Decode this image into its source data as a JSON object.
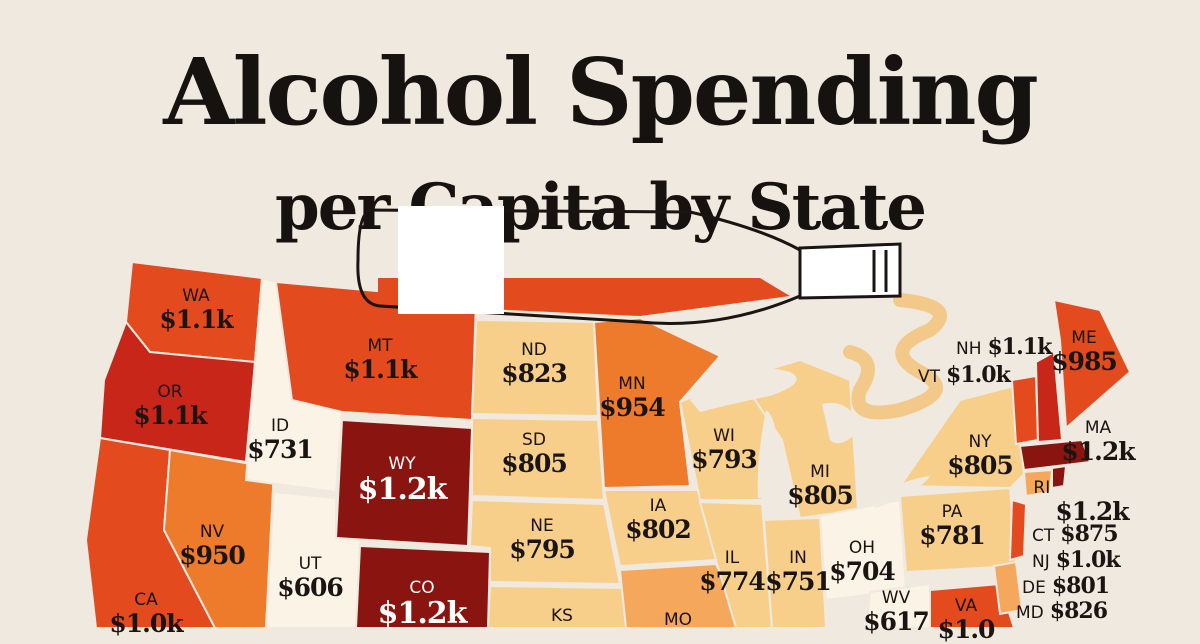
{
  "title": {
    "line1": "Alcohol Spending",
    "line2": "per Capita by State"
  },
  "colors": {
    "background": "#efe9df",
    "lowest": "#fbf3e6",
    "low": "#f7cf8a",
    "mid_low": "#f5a85c",
    "mid": "#ee7a2c",
    "high": "#e34a1d",
    "higher": "#c9261a",
    "highest": "#8a1410",
    "lake_river": "#f3c989"
  },
  "states": [
    {
      "id": "WA",
      "abbr": "WA",
      "value": "$1.1k"
    },
    {
      "id": "OR",
      "abbr": "OR",
      "value": "$1.1k"
    },
    {
      "id": "ID",
      "abbr": "ID",
      "value": "$731"
    },
    {
      "id": "MT",
      "abbr": "MT",
      "value": "$1.1k"
    },
    {
      "id": "WY",
      "abbr": "WY",
      "value": "$1.2k"
    },
    {
      "id": "NV",
      "abbr": "NV",
      "value": "$950"
    },
    {
      "id": "UT",
      "abbr": "UT",
      "value": "$606"
    },
    {
      "id": "CO",
      "abbr": "CO",
      "value": "$1.2k"
    },
    {
      "id": "CA",
      "abbr": "CA",
      "value": "$1.0k"
    },
    {
      "id": "ND",
      "abbr": "ND",
      "value": "$823"
    },
    {
      "id": "SD",
      "abbr": "SD",
      "value": "$805"
    },
    {
      "id": "NE",
      "abbr": "NE",
      "value": "$795"
    },
    {
      "id": "KS",
      "abbr": "KS",
      "value": ""
    },
    {
      "id": "MN",
      "abbr": "MN",
      "value": "$954"
    },
    {
      "id": "IA",
      "abbr": "IA",
      "value": "$802"
    },
    {
      "id": "MO",
      "abbr": "MO",
      "value": ""
    },
    {
      "id": "WI",
      "abbr": "WI",
      "value": "$793"
    },
    {
      "id": "IL",
      "abbr": "IL",
      "value": "$774"
    },
    {
      "id": "MI",
      "abbr": "MI",
      "value": "$805"
    },
    {
      "id": "IN",
      "abbr": "IN",
      "value": "$751"
    },
    {
      "id": "OH",
      "abbr": "OH",
      "value": "$704"
    },
    {
      "id": "WV",
      "abbr": "WV",
      "value": "$617"
    },
    {
      "id": "VA",
      "abbr": "VA",
      "value": "$1.0"
    },
    {
      "id": "PA",
      "abbr": "PA",
      "value": "$781"
    },
    {
      "id": "NY",
      "abbr": "NY",
      "value": "$805"
    },
    {
      "id": "ME",
      "abbr": "ME",
      "value": "$985"
    }
  ],
  "northeast": [
    {
      "id": "NH",
      "abbr": "NH",
      "value": "$1.1k"
    },
    {
      "id": "VT",
      "abbr": "VT",
      "value": "$1.0k"
    },
    {
      "id": "MA",
      "abbr": "MA",
      "value": "$1.2k"
    },
    {
      "id": "RI",
      "abbr": "RI",
      "value": "$1.2k"
    },
    {
      "id": "CT",
      "abbr": "CT",
      "value": "$875"
    },
    {
      "id": "NJ",
      "abbr": "NJ",
      "value": "$1.0k"
    },
    {
      "id": "DE",
      "abbr": "DE",
      "value": "$801"
    },
    {
      "id": "MD",
      "abbr": "MD",
      "value": "$826"
    }
  ]
}
